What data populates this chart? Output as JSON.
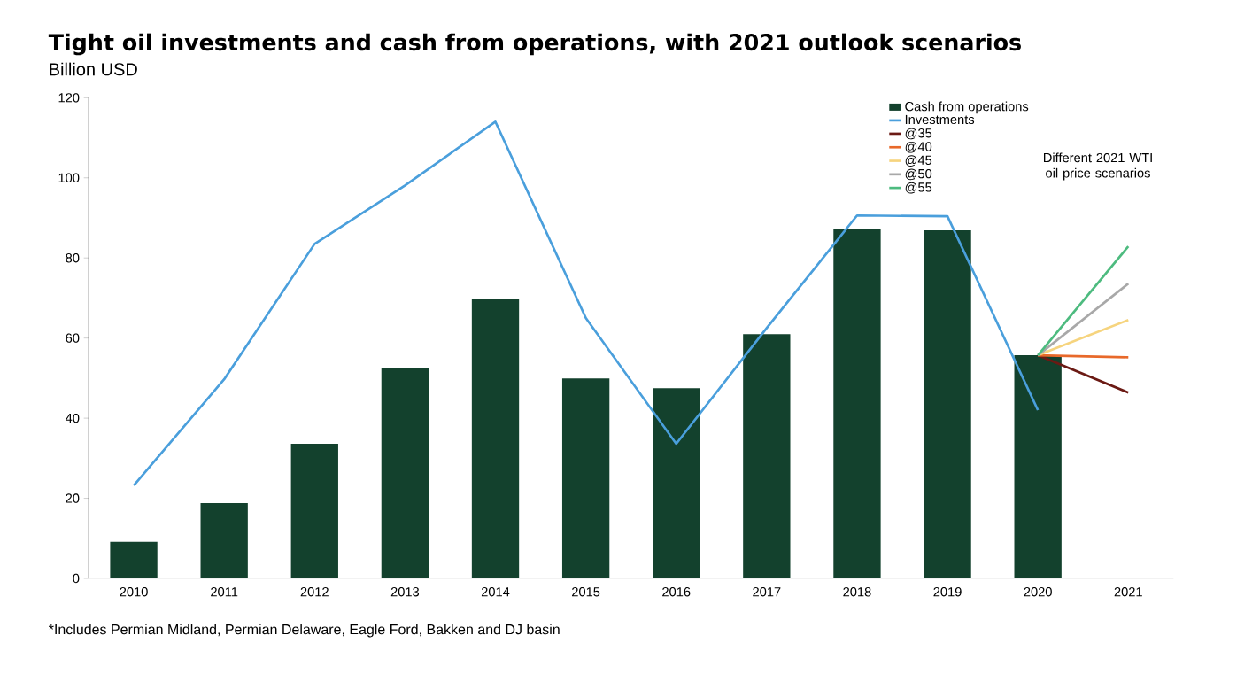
{
  "chart_data": {
    "type": "bar",
    "title": "Tight oil investments and cash from operations, with 2021 outlook scenarios",
    "subtitle": "Billion USD",
    "categories": [
      "2010",
      "2011",
      "2012",
      "2013",
      "2014",
      "2015",
      "2016",
      "2017",
      "2018",
      "2019",
      "2020",
      "2021"
    ],
    "series": [
      {
        "name": "Cash from operations",
        "color": "#13412d",
        "values": [
          9.1,
          18.8,
          33.6,
          52.6,
          69.8,
          49.9,
          47.5,
          61.0,
          87.1,
          86.9,
          55.7,
          null
        ]
      },
      {
        "name": "Investments",
        "type": "line",
        "color": "#4a9fdc",
        "values": [
          23.2,
          49.7,
          83.5,
          98.1,
          114.0,
          65.0,
          33.6,
          62.5,
          90.6,
          90.4,
          42.0,
          null
        ]
      },
      {
        "name": "@35",
        "type": "line",
        "color": "#6b1a14",
        "values": [
          null,
          null,
          null,
          null,
          null,
          null,
          null,
          null,
          null,
          null,
          55.7,
          46.4
        ]
      },
      {
        "name": "@40",
        "type": "line",
        "color": "#e8692a",
        "values": [
          null,
          null,
          null,
          null,
          null,
          null,
          null,
          null,
          null,
          null,
          55.7,
          55.2
        ]
      },
      {
        "name": "@45",
        "type": "line",
        "color": "#f6d47e",
        "values": [
          null,
          null,
          null,
          null,
          null,
          null,
          null,
          null,
          null,
          null,
          55.7,
          64.5
        ]
      },
      {
        "name": "@50",
        "type": "line",
        "color": "#a8a8a8",
        "values": [
          null,
          null,
          null,
          null,
          null,
          null,
          null,
          null,
          null,
          null,
          55.7,
          73.6
        ]
      },
      {
        "name": "@55",
        "type": "line",
        "color": "#4dbb7f",
        "values": [
          null,
          null,
          null,
          null,
          null,
          null,
          null,
          null,
          null,
          null,
          55.7,
          82.9
        ]
      }
    ],
    "ylim": [
      0,
      120
    ],
    "yticks": [
      0,
      20,
      40,
      60,
      80,
      100,
      120
    ],
    "legend": "top right",
    "annotations": [
      "Different 2021 WTI oil price scenarios",
      "*Includes Permian Midland, Permian Delaware, Eagle Ford, Bakken and DJ basin"
    ]
  }
}
